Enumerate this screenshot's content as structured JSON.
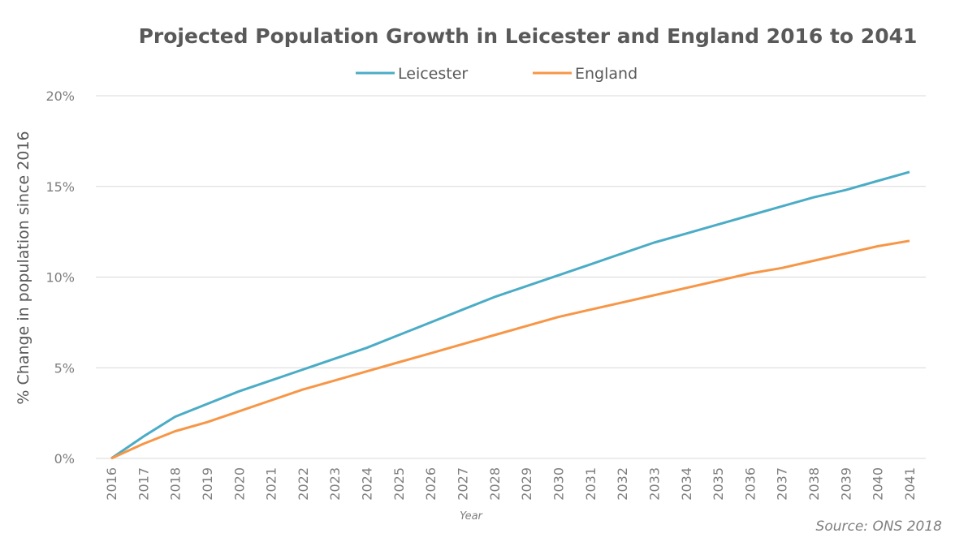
{
  "chart_data": {
    "type": "line",
    "title": "Projected Population Growth in Leicester and England 2016 to 2041",
    "xlabel": "Year",
    "ylabel": "% Change in population since 2016",
    "source": "Source: ONS 2018",
    "ylim": [
      0,
      20
    ],
    "yticks": [
      "0%",
      "5%",
      "10%",
      "15%",
      "20%"
    ],
    "grid": true,
    "legend_position": "top",
    "x": [
      "2016",
      "2017",
      "2018",
      "2019",
      "2020",
      "2021",
      "2022",
      "2023",
      "2024",
      "2025",
      "2026",
      "2027",
      "2028",
      "2029",
      "2030",
      "2031",
      "2032",
      "2033",
      "2034",
      "2035",
      "2036",
      "2037",
      "2038",
      "2039",
      "2040",
      "2041"
    ],
    "series": [
      {
        "name": "Leicester",
        "color": "#4bacc6",
        "values": [
          0,
          1.2,
          2.3,
          3.0,
          3.7,
          4.3,
          4.9,
          5.5,
          6.1,
          6.8,
          7.5,
          8.2,
          8.9,
          9.5,
          10.1,
          10.7,
          11.3,
          11.9,
          12.4,
          12.9,
          13.4,
          13.9,
          14.4,
          14.8,
          15.3,
          15.8
        ]
      },
      {
        "name": "England",
        "color": "#f79646",
        "values": [
          0,
          0.8,
          1.5,
          2.0,
          2.6,
          3.2,
          3.8,
          4.3,
          4.8,
          5.3,
          5.8,
          6.3,
          6.8,
          7.3,
          7.8,
          8.2,
          8.6,
          9.0,
          9.4,
          9.8,
          10.2,
          10.5,
          10.9,
          11.3,
          11.7,
          12.0
        ]
      }
    ]
  }
}
